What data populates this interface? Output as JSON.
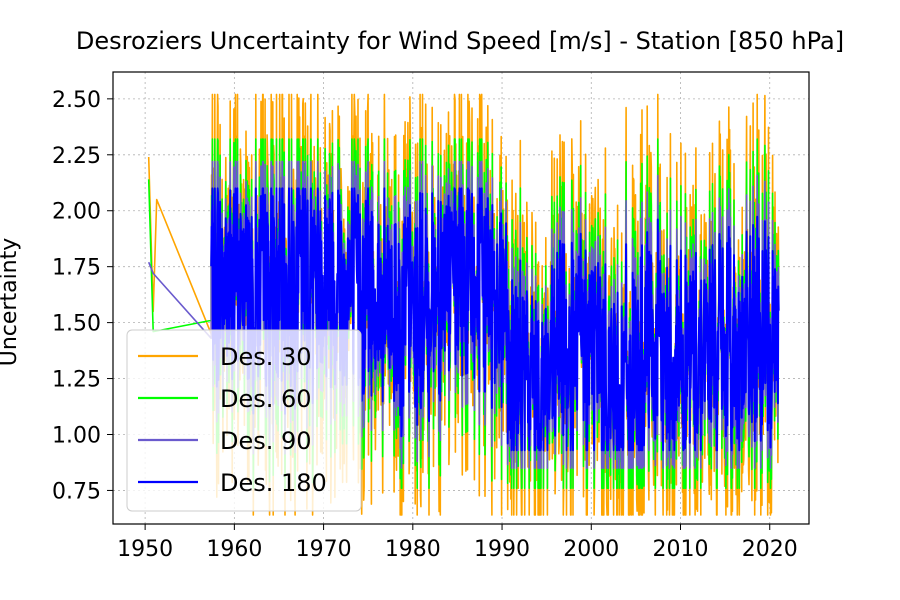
{
  "chart_data": {
    "type": "line",
    "title": "Desroziers Uncertainty for Wind Speed [m/s]  - Station  [850 hPa]",
    "xlabel": "",
    "ylabel": "Uncertainty",
    "xlim": [
      1946.4,
      2024.4
    ],
    "ylim": [
      0.6,
      2.62
    ],
    "x_ticks": [
      1950,
      1960,
      1970,
      1980,
      1990,
      2000,
      2010,
      2020
    ],
    "x_tick_labels": [
      "1950",
      "1960",
      "1970",
      "1980",
      "1990",
      "2000",
      "2010",
      "2020"
    ],
    "y_ticks": [
      0.75,
      1.0,
      1.25,
      1.5,
      1.75,
      2.0,
      2.25,
      2.5
    ],
    "y_tick_labels": [
      "0.75",
      "1.00",
      "1.25",
      "1.50",
      "1.75",
      "2.00",
      "2.25",
      "2.50"
    ],
    "grid": true,
    "legend_position": "lower-left",
    "segments": [
      {
        "x": [
          1950.3,
          1950.9,
          1951.3,
          1957.4
        ],
        "center": 1.75,
        "min": 0.83,
        "max": 2.24
      },
      {
        "x": [
          1957.4,
          1962
        ],
        "center": 1.7,
        "min": 0.68,
        "max": 2.5
      },
      {
        "x": [
          1962,
          1966
        ],
        "center": 1.65,
        "min": 0.72,
        "max": 2.5
      },
      {
        "x": [
          1966,
          1972
        ],
        "center": 1.72,
        "min": 0.7,
        "max": 2.52
      },
      {
        "x": [
          1972,
          1976
        ],
        "center": 1.65,
        "min": 0.7,
        "max": 2.5
      },
      {
        "x": [
          1976,
          1982
        ],
        "center": 1.55,
        "min": 0.68,
        "max": 2.5
      },
      {
        "x": [
          1982,
          1987
        ],
        "center": 1.7,
        "min": 0.7,
        "max": 2.5
      },
      {
        "x": [
          1987,
          1990.5
        ],
        "center": 1.65,
        "min": 0.7,
        "max": 2.52
      },
      {
        "x": [
          1990.5,
          1996
        ],
        "center": 1.25,
        "min": 0.64,
        "max": 2.3
      },
      {
        "x": [
          1996,
          2001
        ],
        "center": 1.4,
        "min": 0.64,
        "max": 2.5
      },
      {
        "x": [
          2001,
          2006
        ],
        "center": 1.25,
        "min": 0.64,
        "max": 2.5
      },
      {
        "x": [
          2006,
          2012
        ],
        "center": 1.35,
        "min": 0.64,
        "max": 2.5
      },
      {
        "x": [
          2012,
          2017
        ],
        "center": 1.4,
        "min": 0.66,
        "max": 2.5
      },
      {
        "x": [
          2017,
          2021
        ],
        "center": 1.4,
        "min": 0.64,
        "max": 2.5
      }
    ],
    "series": [
      {
        "name": "Des. 30",
        "color": "#FFA500",
        "cap_high": 2.52,
        "cap_low": 0.64,
        "early": [
          [
            1950.4,
            2.24
          ],
          [
            1950.9,
            1.55
          ],
          [
            1951.3,
            2.05
          ],
          [
            1957.4,
            1.45
          ]
        ]
      },
      {
        "name": "Des. 60",
        "color": "#00FF00",
        "cap_high": 2.32,
        "cap_low": 0.76,
        "early": [
          [
            1950.4,
            2.14
          ],
          [
            1950.9,
            1.46
          ],
          [
            1957.4,
            1.51
          ]
        ]
      },
      {
        "name": "Des. 90",
        "color": "#6A5ACD",
        "cap_high": 2.22,
        "cap_low": 0.85,
        "early": [
          [
            1950.4,
            1.77
          ],
          [
            1950.9,
            1.72
          ],
          [
            1957.4,
            1.43
          ]
        ]
      },
      {
        "name": "Des. 180",
        "color": "#0000FF",
        "cap_high": 2.1,
        "cap_low": 0.93,
        "early": []
      }
    ]
  }
}
